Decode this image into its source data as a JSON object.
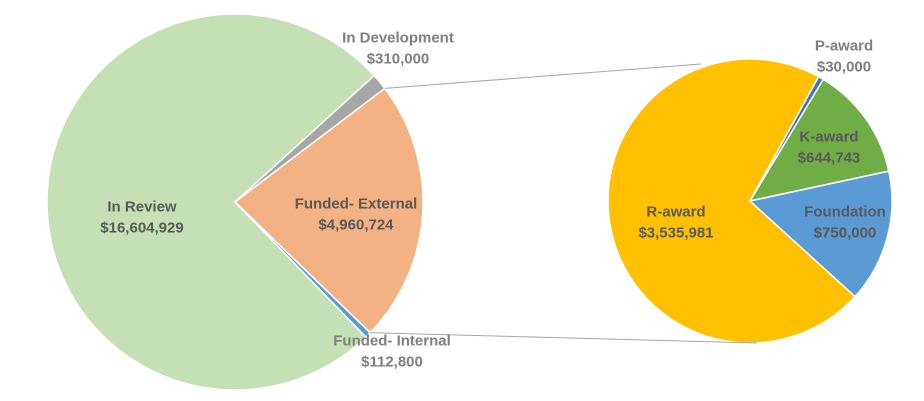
{
  "chart_data": {
    "type": "pie",
    "variant": "pie-of-pie",
    "background": "#ffffff",
    "grid": false,
    "legend": "none",
    "title": "",
    "slice_border_color": "#ffffff",
    "slice_border_width": 1.5,
    "label_font_size": 15,
    "label_line_height": 21,
    "pies": [
      {
        "id": "main-pie",
        "center": [
          235,
          202
        ],
        "radius": 188,
        "start_angle_deg": 135.9,
        "total": 21988453,
        "slices": [
          {
            "label": "In Review",
            "value": 16604929,
            "value_label": "$16,604,929",
            "color": "#c5e0b4",
            "label_placement": "inside",
            "label_color": "#595959",
            "label_xy": [
              142,
              207
            ]
          },
          {
            "label": "In Development",
            "value": 310000,
            "value_label": "$310,000",
            "color": "#a6a6a6",
            "label_placement": "outside",
            "label_color": "#7f7f7f",
            "label_xy": [
              398,
              38
            ]
          },
          {
            "label": "Funded- External",
            "value": 4960724,
            "value_label": "$4,960,724",
            "color": "#f4b183",
            "label_placement": "inside",
            "label_color": "#595959",
            "label_xy": [
              356,
              204
            ]
          },
          {
            "label": "Funded- Internal",
            "value": 112800,
            "value_label": "$112,800",
            "color": "#5b9bd5",
            "label_placement": "outside",
            "label_color": "#7f7f7f",
            "label_xy": [
              392,
              341
            ]
          }
        ]
      },
      {
        "id": "secondary-pie",
        "breakdown_of": "Funded- External",
        "center": [
          750,
          201
        ],
        "radius": 142,
        "start_angle_deg": 132.3,
        "total": 4960724,
        "slices": [
          {
            "label": "R-award",
            "value": 3535981,
            "value_label": "$3,535,981",
            "color": "#ffc000",
            "label_placement": "inside",
            "label_color": "#595959",
            "label_xy": [
              676,
              212
            ]
          },
          {
            "label": "P-award",
            "value": 30000,
            "value_label": "$30,000",
            "color": "#4472c4",
            "label_placement": "outside",
            "label_color": "#7f7f7f",
            "label_xy": [
              844,
              46
            ]
          },
          {
            "label": "K-award",
            "value": 644743,
            "value_label": "$644,743",
            "color": "#70ad47",
            "label_placement": "inside",
            "label_color": "#595959",
            "label_xy": [
              829,
              137
            ]
          },
          {
            "label": "Foundation",
            "value": 750000,
            "value_label": "$750,000",
            "color": "#5b9bd5",
            "label_placement": "inside",
            "label_color": "#595959",
            "label_xy": [
              845,
              212
            ]
          }
        ]
      }
    ],
    "connector_lines": [
      {
        "from": [
          384.7,
          88.4
        ],
        "to": [
          701,
          64
        ],
        "color": "#a6a6a6",
        "width": 1
      },
      {
        "from": [
          370.1,
          332.7
        ],
        "to": [
          757,
          343
        ],
        "color": "#a6a6a6",
        "width": 1
      }
    ]
  }
}
